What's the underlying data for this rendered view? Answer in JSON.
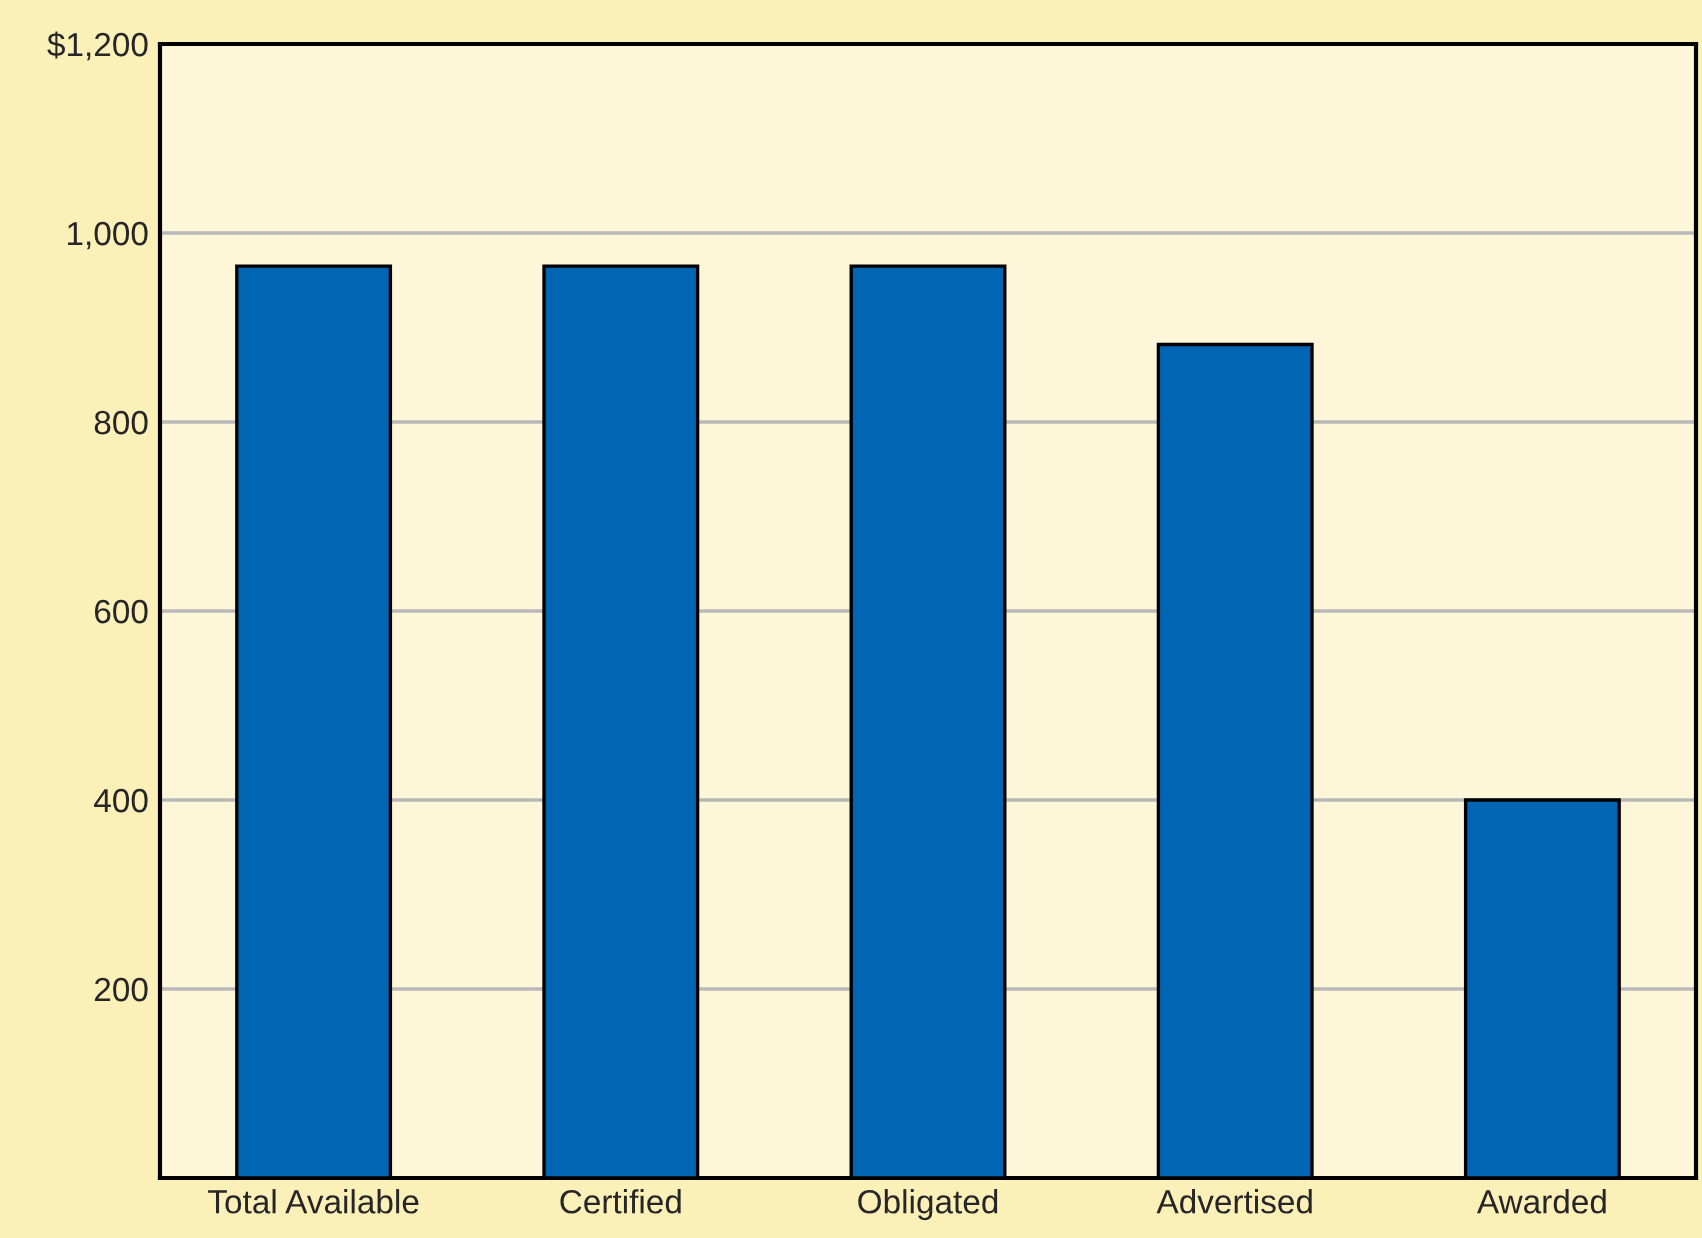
{
  "chart_data": {
    "type": "bar",
    "categories": [
      "Total Available",
      "Certified",
      "Obligated",
      "Advertised",
      "Awarded"
    ],
    "values": [
      965,
      965,
      965,
      882,
      400
    ],
    "color": "#0066b3",
    "ylim": [
      0,
      1200
    ],
    "yticks": [
      {
        "value": 200,
        "label": "200"
      },
      {
        "value": 400,
        "label": "400"
      },
      {
        "value": 600,
        "label": "600"
      },
      {
        "value": 800,
        "label": "800"
      },
      {
        "value": 1000,
        "label": "1,000"
      },
      {
        "value": 1200,
        "label": "$1,200"
      }
    ],
    "grid": "y"
  }
}
